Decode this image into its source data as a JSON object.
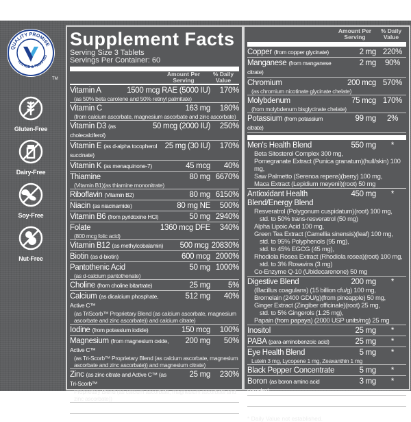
{
  "badge": {
    "top_text": "QUALITY PROMISE",
    "bottom_text": "TESTED & TRUSTED",
    "tm": "TM",
    "colors": {
      "dark": "#1d3f8f",
      "light": "#3fa9e0"
    }
  },
  "free_icons": [
    {
      "icon": "wheat-crossed-icon",
      "label": "Gluten-Free"
    },
    {
      "icon": "milk-crossed-icon",
      "label": "Dairy-Free"
    },
    {
      "icon": "soybean-crossed-icon",
      "label": "Soy-Free"
    },
    {
      "icon": "peanut-crossed-icon",
      "label": "Nut-Free"
    }
  ],
  "label": {
    "title": "Supplement Facts",
    "serving_size": "Serving Size 3 Tablets",
    "servings_per_container": "Servings Per Container: 60",
    "col_amount": "Amount Per Serving",
    "col_dv": "% Daily Value",
    "left_rows": [
      {
        "name": "Vitamin A",
        "note": "",
        "amount": "1500 mcg RAE (5000 IU)",
        "dv": "170%",
        "sub": "(as 50% beta carotene and 50% retinyl palmitate)"
      },
      {
        "name": "Vitamin C",
        "note": "",
        "amount": "163 mg",
        "dv": "180%",
        "sub": "(from calcium ascorbate, magnesium ascorbate and zinc ascorbate)"
      },
      {
        "name": "Vitamin D3",
        "note": "(as cholecalciferol)",
        "amount": "50 mcg (2000 IU)",
        "dv": "250%",
        "sub": ""
      },
      {
        "name": "Vitamin E",
        "note": "(as d-alpha tocopherol succinate)",
        "amount": "25 mg (30 IU)",
        "dv": "170%",
        "sub": ""
      },
      {
        "name": "Vitamin K",
        "note": "(as menaquinone-7)",
        "amount": "45 mcg",
        "dv": "40%",
        "sub": ""
      },
      {
        "name": "Thiamine",
        "note": "",
        "amount": "80 mg",
        "dv": "6670%",
        "sub": "(Vitamin B1)(as thiamine mononitrate)"
      },
      {
        "name": "Riboflavin",
        "note": "(Vitamin B2)",
        "amount": "80 mg",
        "dv": "6150%",
        "sub": ""
      },
      {
        "name": "Niacin",
        "note": "(as niacinamide)",
        "amount": "80 mg NE",
        "dv": "500%",
        "sub": ""
      },
      {
        "name": "Vitamin B6",
        "note": "(from pyridoxine HCl)",
        "amount": "50 mg",
        "dv": "2940%",
        "sub": ""
      },
      {
        "name": "Folate",
        "note": "",
        "amount": "1360 mcg DFE",
        "dv": "340%",
        "sub": "(800 mcg folic acid)"
      },
      {
        "name": "Vitamin B12",
        "note": "(as methylcobalamin)",
        "amount": "500 mcg",
        "dv": "20830%",
        "sub": ""
      },
      {
        "name": "Biotin",
        "note": "(as d-biotin)",
        "amount": "600 mcg",
        "dv": "2000%",
        "sub": ""
      },
      {
        "name": "Pantothenic Acid",
        "note": "",
        "amount": "50 mg",
        "dv": "1000%",
        "sub": "(as d-calcium pantothenate)"
      },
      {
        "name": "Choline",
        "note": "(from choline bitartrate)",
        "amount": "25 mg",
        "dv": "5%",
        "sub": ""
      },
      {
        "name": "Calcium",
        "note": "(as dicalcium phosphate, Active C™",
        "amount": "512 mg",
        "dv": "40%",
        "sub": "(as TriScorb™ Proprietary Blend (as calcium ascorbate, magnesium ascorbate and zinc ascorbate)) and calcium citrate)"
      },
      {
        "name": "Iodine",
        "note": "(from potassium iodide)",
        "amount": "150 mcg",
        "dv": "100%",
        "sub": ""
      },
      {
        "name": "Magnesium",
        "note": "(from magnesium oxide, Active C™",
        "amount": "200 mg",
        "dv": "50%",
        "sub": "(as Tri-Scorb™ Proprietary Blend (as calcium ascorbate, magnesium ascorbate and zinc ascorbate)) and magnesium citrate)"
      },
      {
        "name": "Zinc",
        "note": "(as zinc citrate and Active C™ (as Tri-Scorb™",
        "amount": "25 mg",
        "dv": "230%",
        "sub": "Proprietary Blend (as calcium ascorbate, magnesium ascorbate and zinc ascorbate))"
      },
      {
        "name": "Selenium",
        "note": "(from L-selenomethionine)",
        "amount": "200 mcg",
        "dv": "360%",
        "sub": ""
      }
    ],
    "right_minerals": [
      {
        "name": "Copper",
        "note": "(from copper glycinate)",
        "amount": "2 mg",
        "dv": "220%",
        "sub": ""
      },
      {
        "name": "Manganese",
        "note": "(from manganese citrate)",
        "amount": "2 mg",
        "dv": "90%",
        "sub": ""
      },
      {
        "name": "Chromium",
        "note": "",
        "amount": "200 mcg",
        "dv": "570%",
        "sub": "(as chromium nicotinate glycinate chelate)"
      },
      {
        "name": "Molybdenum",
        "note": "",
        "amount": "75 mcg",
        "dv": "170%",
        "sub": "(from molybdenum bisglycinate chelate)"
      },
      {
        "name": "Potassium",
        "note": "(from potassium citrate)",
        "amount": "99 mg",
        "dv": "2%",
        "sub": ""
      }
    ],
    "blends": [
      {
        "name": "Men's Health Blend",
        "amount": "550 mg",
        "dv": "*",
        "lines": [
          "Beta Sitosterol Complex 300 mg,",
          "Pomegranate Extract (Punica granatum)(hull/skin) 100 mg,",
          "Saw Palmetto (Serenoa repens)(berry) 100 mg,",
          "Maca Extract (Lepidium meyenii)(root) 50 mg"
        ]
      },
      {
        "name": "Antioxidant Health Blend/Energy Blend",
        "amount": "450 mg",
        "dv": "*",
        "lines": [
          "Resveratrol (Polygonum cuspidatum)(root) 100 mg,",
          "  std. to 50% trans-resveratrol (50 mg)",
          "Alpha Lipoic Acid 100 mg,",
          "Green Tea Extract (Camellia sinensis)(leaf) 100 mg,",
          "  std. to 95% Polyphenols (95 mg),",
          "  std. to 45% EGCG (45 mg),",
          "Rhodiola Rosea Extract (Rhodiola rosea)(root) 100 mg,",
          "  std. to 3% Rosavins (3 mg)",
          "Co-Enzyme Q-10 (Ubidecarenone) 50 mg"
        ]
      },
      {
        "name": "Digestive Blend",
        "amount": "200 mg",
        "dv": "*",
        "lines": [
          "(Bacillus coagulans) (15 billion cfu/g) 100 mg,",
          "Bromelain (2400 GDU/g)(from pineapple) 50 mg,",
          "Ginger Extract (Zingiber officinale)(root) 25 mg,",
          "  std. to 5% Gingerols (1.25 mg),",
          "Papain (from papaya) (2000 USP units/mg) 25 mg"
        ]
      }
    ],
    "right_others": [
      {
        "name": "Inositol",
        "note": "",
        "amount": "25 mg",
        "dv": "*",
        "sub": ""
      },
      {
        "name": "PABA",
        "note": "(para-aminobenzoic acid)",
        "amount": "25 mg",
        "dv": "*",
        "sub": ""
      },
      {
        "name": "Eye Health Blend",
        "note": "",
        "amount": "5 mg",
        "dv": "*",
        "sub": "Lutein 3 mg, Lycopene 1 mg, Zeaxanthin 1 mg"
      },
      {
        "name": "Black Pepper Concentrate",
        "note": "",
        "amount": "5 mg",
        "dv": "*",
        "sub": ""
      },
      {
        "name": "Boron",
        "note": "(as boron amino acid complex)",
        "amount": "3 mg",
        "dv": "*",
        "sub": ""
      },
      {
        "name": "Vanadium",
        "note": "(from vanadyl sulfate)",
        "amount": "1 mg",
        "dv": "*",
        "sub": ""
      }
    ],
    "footnote": "* Daily Value not established."
  }
}
